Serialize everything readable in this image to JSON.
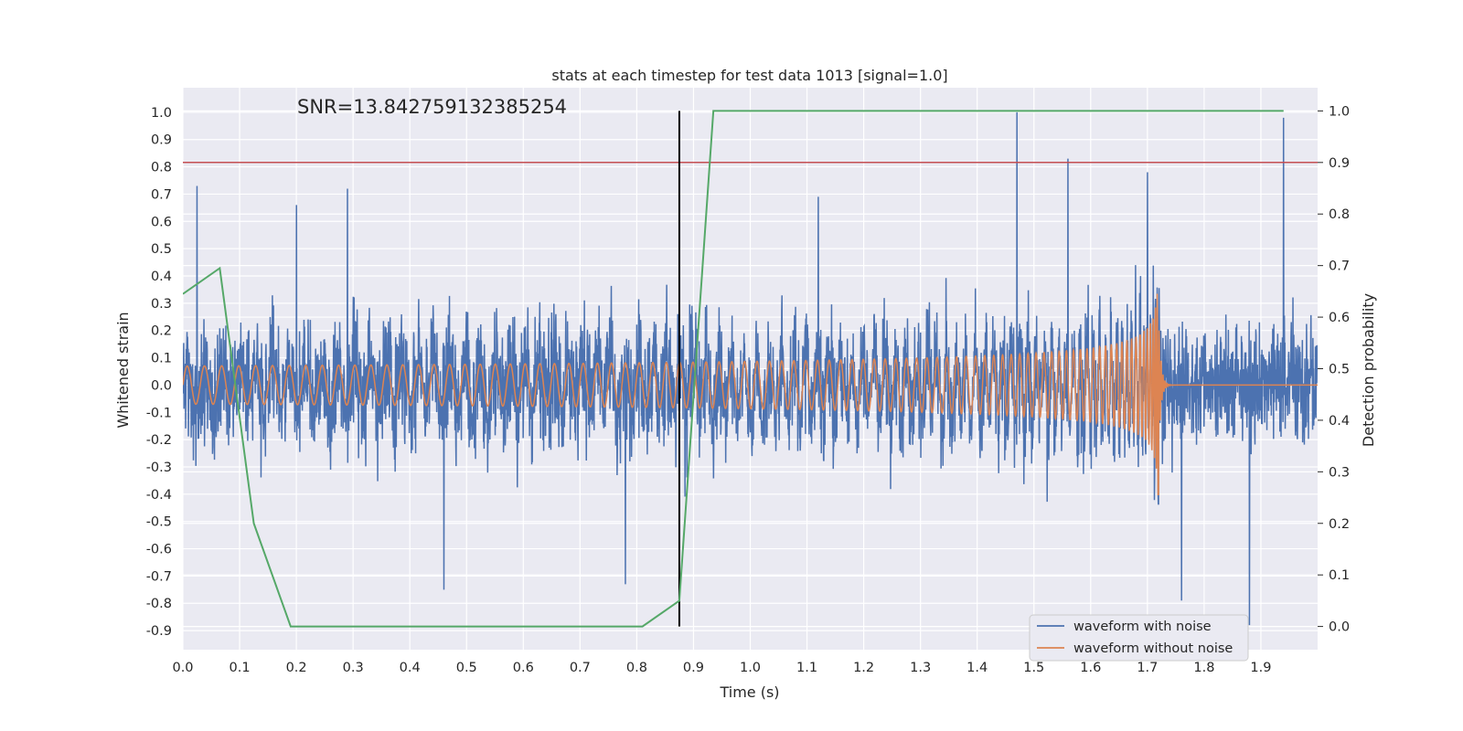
{
  "chart_data": {
    "type": "line",
    "title": "stats at each timestep for test data 1013 [signal=1.0]",
    "annotation": "SNR=13.842759132385254",
    "xlabel": "Time (s)",
    "ylabel_left": "Whitened strain",
    "ylabel_right": "Detection probability",
    "xlim": [
      0.0,
      2.0
    ],
    "ylim_left": [
      -0.97,
      1.09
    ],
    "ylim_right": [
      -0.045,
      1.045
    ],
    "x_ticks": [
      "0.0",
      "0.1",
      "0.2",
      "0.3",
      "0.4",
      "0.5",
      "0.6",
      "0.7",
      "0.8",
      "0.9",
      "1.0",
      "1.1",
      "1.2",
      "1.3",
      "1.4",
      "1.5",
      "1.6",
      "1.7",
      "1.8",
      "1.9"
    ],
    "y_left_ticks": [
      "1.0",
      "0.9",
      "0.8",
      "0.7",
      "0.6",
      "0.5",
      "0.4",
      "0.3",
      "0.2",
      "0.1",
      "0.0",
      "-0.1",
      "-0.2",
      "-0.3",
      "-0.4",
      "-0.5",
      "-0.6",
      "-0.7",
      "-0.8",
      "-0.9"
    ],
    "y_right_ticks": [
      "1.0",
      "0.9",
      "0.8",
      "0.7",
      "0.6",
      "0.5",
      "0.4",
      "0.3",
      "0.2",
      "0.1",
      "0.0"
    ],
    "grid": true,
    "legend_position": "lower-right",
    "threshold": {
      "axis": "right",
      "value": 0.9,
      "color": "#c44e52"
    },
    "vertical_marker": {
      "x": 0.875,
      "y_range": [
        0.0,
        1.0
      ],
      "color": "#000000"
    },
    "series": [
      {
        "name": "waveform with noise",
        "axis": "left",
        "color": "#4c72b0",
        "description_values": "dense noisy strain, amplitude about ±0.6, peaks near 1.0",
        "peaks": [
          {
            "x": 0.025,
            "y": 0.73
          },
          {
            "x": 0.2,
            "y": 0.66
          },
          {
            "x": 0.29,
            "y": 0.72
          },
          {
            "x": 0.46,
            "y": -0.75
          },
          {
            "x": 0.78,
            "y": -0.73
          },
          {
            "x": 1.12,
            "y": 0.69
          },
          {
            "x": 1.47,
            "y": 1.0
          },
          {
            "x": 1.56,
            "y": 0.83
          },
          {
            "x": 1.7,
            "y": 0.78
          },
          {
            "x": 1.76,
            "y": -0.79
          },
          {
            "x": 1.88,
            "y": -0.88
          },
          {
            "x": 1.94,
            "y": 0.98
          }
        ]
      },
      {
        "name": "waveform without noise",
        "axis": "left",
        "color": "#dd8452",
        "description_values": "chirp: amplitude 0.07 rising to 0.42 and frequency rising until merger at t≈1.72 s, then ringdown to 0",
        "merger_time": 1.72,
        "start_amplitude": 0.07,
        "peak_amplitude": 0.42
      },
      {
        "name": "",
        "axis": "right",
        "color": "#55a868",
        "x": [
          0.0,
          0.065,
          0.125,
          0.19,
          0.25,
          0.81,
          0.875,
          0.935,
          1.94
        ],
        "y": [
          0.645,
          0.695,
          0.2,
          0.0,
          0.0,
          0.0,
          0.05,
          1.0,
          1.0
        ]
      }
    ]
  }
}
